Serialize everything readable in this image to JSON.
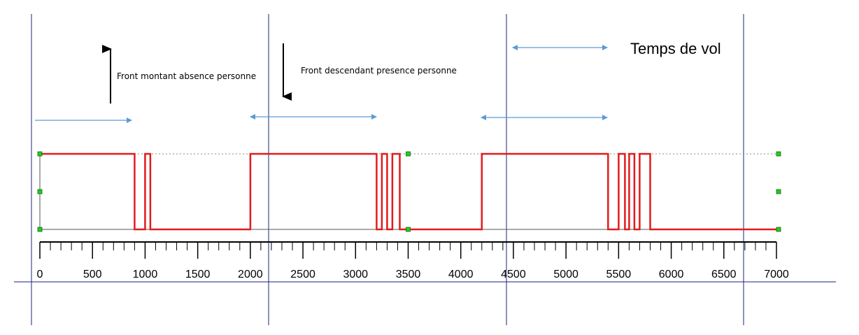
{
  "annotations": {
    "rising_edge": "Front montant absence personne",
    "falling_edge": "Front descendant presence personne",
    "time_of_flight": "Temps de vol"
  },
  "colors": {
    "signal": "#e31a1c",
    "axis": "#000000",
    "guide_lines": "#1a237e",
    "span_arrows": "#5b9bd5",
    "handles": "#22cc22",
    "dotted_high": "#888888"
  },
  "axis": {
    "min": 0,
    "max": 7000,
    "minor_step": 100,
    "tick_labels": [
      "0",
      "500",
      "1000",
      "1500",
      "2000",
      "2500",
      "3000",
      "3500",
      "4000",
      "4500",
      "5000",
      "5500",
      "6000",
      "6500",
      "7000"
    ]
  },
  "chart_data": {
    "type": "line",
    "step": true,
    "series": [
      {
        "points": [
          [
            0,
            1
          ],
          [
            900,
            1
          ],
          [
            900,
            0
          ],
          [
            1000,
            0
          ],
          [
            1000,
            1
          ],
          [
            1050,
            1
          ],
          [
            1050,
            0
          ],
          [
            2000,
            0
          ],
          [
            2000,
            1
          ],
          [
            3200,
            1
          ],
          [
            3200,
            0
          ],
          [
            3250,
            0
          ],
          [
            3250,
            1
          ],
          [
            3300,
            1
          ],
          [
            3300,
            0
          ],
          [
            3350,
            0
          ],
          [
            3350,
            1
          ],
          [
            3420,
            1
          ],
          [
            3420,
            0
          ],
          [
            4200,
            0
          ],
          [
            4200,
            1
          ],
          [
            5400,
            1
          ],
          [
            5400,
            0
          ],
          [
            5500,
            0
          ],
          [
            5500,
            1
          ],
          [
            5560,
            1
          ],
          [
            5560,
            0
          ],
          [
            5600,
            0
          ],
          [
            5600,
            1
          ],
          [
            5650,
            1
          ],
          [
            5650,
            0
          ],
          [
            5700,
            0
          ],
          [
            5700,
            1
          ],
          [
            5800,
            1
          ],
          [
            5800,
            0
          ],
          [
            7000,
            0
          ]
        ]
      }
    ],
    "xlim": [
      0,
      7000
    ],
    "ylim": [
      0,
      1
    ]
  }
}
